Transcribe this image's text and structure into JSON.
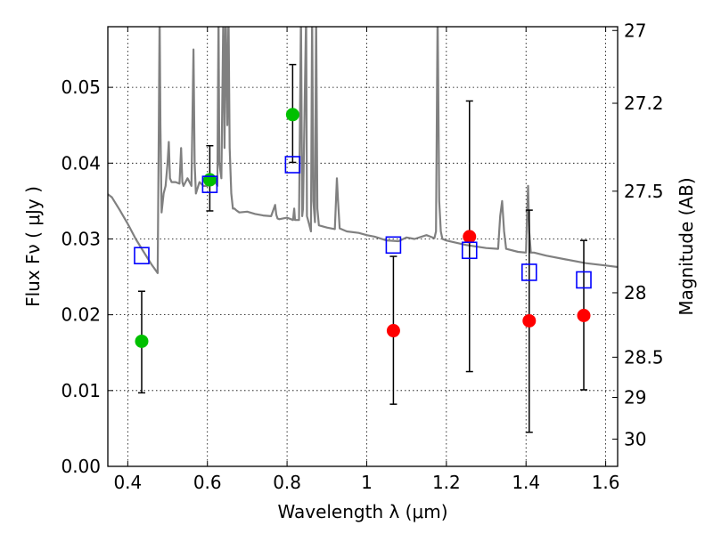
{
  "chart_data": {
    "type": "scatter",
    "xlabel": "Wavelength  λ (μm)",
    "ylabel": "Flux  Fν  ( μJy )",
    "ylabel_right": "Magnitude (AB)",
    "xlim": [
      0.35,
      1.63
    ],
    "ylim": [
      0.0,
      0.058
    ],
    "grid": true,
    "grid_style": "dotted",
    "x_ticks": [
      0.4,
      0.6,
      0.8,
      1.0,
      1.2,
      1.4,
      1.6
    ],
    "x_tick_labels": [
      "0.4",
      "0.6",
      "0.8",
      "1",
      "1.2",
      "1.4",
      "1.6"
    ],
    "y_ticks": [
      0.0,
      0.01,
      0.02,
      0.03,
      0.04,
      0.05
    ],
    "y_tick_labels": [
      "0.00",
      "0.01",
      "0.02",
      "0.03",
      "0.04",
      "0.05"
    ],
    "right_ticks": [
      {
        "label": "27",
        "flux": 0.0575
      },
      {
        "label": "27.2",
        "flux": 0.0479
      },
      {
        "label": "27.5",
        "flux": 0.0363
      },
      {
        "label": "28",
        "flux": 0.0229
      },
      {
        "label": "28.5",
        "flux": 0.0144
      },
      {
        "label": "29",
        "flux": 0.0091
      },
      {
        "label": "30",
        "flux": 0.0036
      }
    ],
    "colors": {
      "green": "#00c000",
      "red": "#ff0000",
      "blue": "#0000ff",
      "model": "#808080",
      "errorbar": "#000000"
    },
    "series": [
      {
        "marker": "circle-green",
        "points": [
          {
            "x": 0.435,
            "y": 0.0165,
            "err_lo": 0.0097,
            "err_hi": 0.0231
          },
          {
            "x": 0.606,
            "y": 0.0378,
            "err_lo": 0.0337,
            "err_hi": 0.0423
          },
          {
            "x": 0.814,
            "y": 0.0464,
            "err_lo": 0.0401,
            "err_hi": 0.053
          }
        ]
      },
      {
        "marker": "circle-red",
        "points": [
          {
            "x": 1.067,
            "y": 0.0179,
            "err_lo": 0.0082,
            "err_hi": 0.0277
          },
          {
            "x": 1.258,
            "y": 0.0303,
            "err_lo": 0.0125,
            "err_hi": 0.0482
          },
          {
            "x": 1.408,
            "y": 0.0192,
            "err_lo": 0.0045,
            "err_hi": 0.0338
          },
          {
            "x": 1.545,
            "y": 0.0199,
            "err_lo": 0.0101,
            "err_hi": 0.0298
          }
        ]
      },
      {
        "marker": "square-blue",
        "points": [
          {
            "x": 0.435,
            "y": 0.0278
          },
          {
            "x": 0.606,
            "y": 0.0372
          },
          {
            "x": 0.814,
            "y": 0.0398
          },
          {
            "x": 1.067,
            "y": 0.0292
          },
          {
            "x": 1.258,
            "y": 0.0285
          },
          {
            "x": 1.408,
            "y": 0.0256
          },
          {
            "x": 1.545,
            "y": 0.0246
          }
        ]
      }
    ],
    "model_spectrum": {
      "x": [
        0.35,
        0.36,
        0.38,
        0.4,
        0.42,
        0.44,
        0.46,
        0.475,
        0.478,
        0.48,
        0.482,
        0.485,
        0.49,
        0.495,
        0.5,
        0.503,
        0.506,
        0.51,
        0.52,
        0.53,
        0.534,
        0.537,
        0.54,
        0.55,
        0.56,
        0.565,
        0.568,
        0.571,
        0.58,
        0.59,
        0.6,
        0.61,
        0.62,
        0.625,
        0.628,
        0.63,
        0.635,
        0.64,
        0.643,
        0.646,
        0.65,
        0.653,
        0.656,
        0.66,
        0.664,
        0.668,
        0.672,
        0.68,
        0.7,
        0.72,
        0.74,
        0.76,
        0.77,
        0.773,
        0.776,
        0.78,
        0.8,
        0.81,
        0.815,
        0.818,
        0.82,
        0.83,
        0.835,
        0.838,
        0.84,
        0.848,
        0.85,
        0.855,
        0.86,
        0.863,
        0.866,
        0.87,
        0.873,
        0.876,
        0.88,
        0.9,
        0.92,
        0.925,
        0.928,
        0.932,
        0.95,
        0.98,
        1.0,
        1.02,
        1.05,
        1.08,
        1.1,
        1.12,
        1.15,
        1.17,
        1.174,
        1.178,
        1.182,
        1.186,
        1.19,
        1.2,
        1.25,
        1.3,
        1.33,
        1.335,
        1.34,
        1.345,
        1.35,
        1.38,
        1.4,
        1.402,
        1.405,
        1.408,
        1.412,
        1.42,
        1.45,
        1.5,
        1.55,
        1.6,
        1.63
      ],
      "y": [
        0.0359,
        0.0355,
        0.0338,
        0.032,
        0.03,
        0.0283,
        0.0266,
        0.0255,
        0.045,
        0.06,
        0.045,
        0.0335,
        0.036,
        0.037,
        0.04,
        0.0428,
        0.038,
        0.0375,
        0.0375,
        0.0373,
        0.042,
        0.0375,
        0.037,
        0.038,
        0.037,
        0.055,
        0.04,
        0.036,
        0.0375,
        0.037,
        0.037,
        0.038,
        0.0375,
        0.037,
        0.06,
        0.04,
        0.038,
        0.06,
        0.042,
        0.06,
        0.045,
        0.06,
        0.042,
        0.036,
        0.034,
        0.034,
        0.0338,
        0.0335,
        0.0336,
        0.0333,
        0.0331,
        0.033,
        0.0345,
        0.0332,
        0.0327,
        0.0326,
        0.0328,
        0.0326,
        0.0325,
        0.034,
        0.0325,
        0.0325,
        0.06,
        0.033,
        0.034,
        0.06,
        0.033,
        0.032,
        0.031,
        0.06,
        0.035,
        0.0322,
        0.06,
        0.034,
        0.0318,
        0.0315,
        0.0313,
        0.038,
        0.035,
        0.0314,
        0.031,
        0.0308,
        0.0305,
        0.0303,
        0.0298,
        0.0297,
        0.0302,
        0.03,
        0.0305,
        0.0301,
        0.031,
        0.06,
        0.035,
        0.031,
        0.03,
        0.0298,
        0.0292,
        0.0288,
        0.0287,
        0.033,
        0.035,
        0.031,
        0.0287,
        0.0283,
        0.0282,
        0.032,
        0.037,
        0.031,
        0.0282,
        0.0282,
        0.0278,
        0.0273,
        0.0268,
        0.0265,
        0.0263
      ]
    }
  }
}
